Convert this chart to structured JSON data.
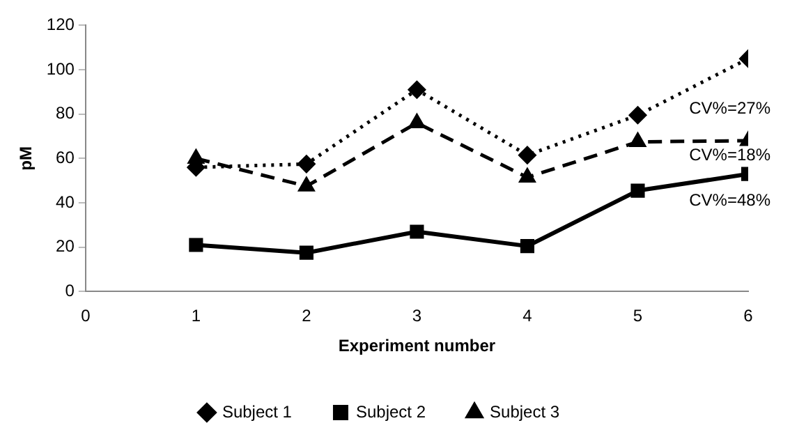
{
  "chart_data": {
    "type": "line",
    "xlabel": "Experiment number",
    "ylabel": "pM",
    "x": [
      1,
      2,
      3,
      4,
      5,
      6
    ],
    "series": [
      {
        "name": "Subject 1",
        "color": "#000000",
        "values": [
          56,
          57.5,
          91,
          61.5,
          79.5,
          105
        ],
        "marker": "diamond",
        "line_style": "dotted"
      },
      {
        "name": "Subject 2",
        "color": "#000000",
        "values": [
          21,
          17.5,
          27,
          20.5,
          45.5,
          53
        ],
        "marker": "square",
        "line_style": "solid"
      },
      {
        "name": "Subject 3",
        "color": "#000000",
        "values": [
          60,
          47.5,
          76,
          51.5,
          67.5,
          68
        ],
        "marker": "triangle",
        "line_style": "dashed"
      }
    ],
    "xlim": [
      0,
      6
    ],
    "xticks": [
      0,
      1,
      2,
      3,
      4,
      5,
      6
    ],
    "ylim": [
      0,
      120
    ],
    "yticks": [
      0,
      20,
      40,
      60,
      80,
      100,
      120
    ],
    "grid": false,
    "legend": "bottom",
    "annotations": [
      "CV%=27%",
      "CV%=18%",
      "CV%=48%"
    ]
  }
}
